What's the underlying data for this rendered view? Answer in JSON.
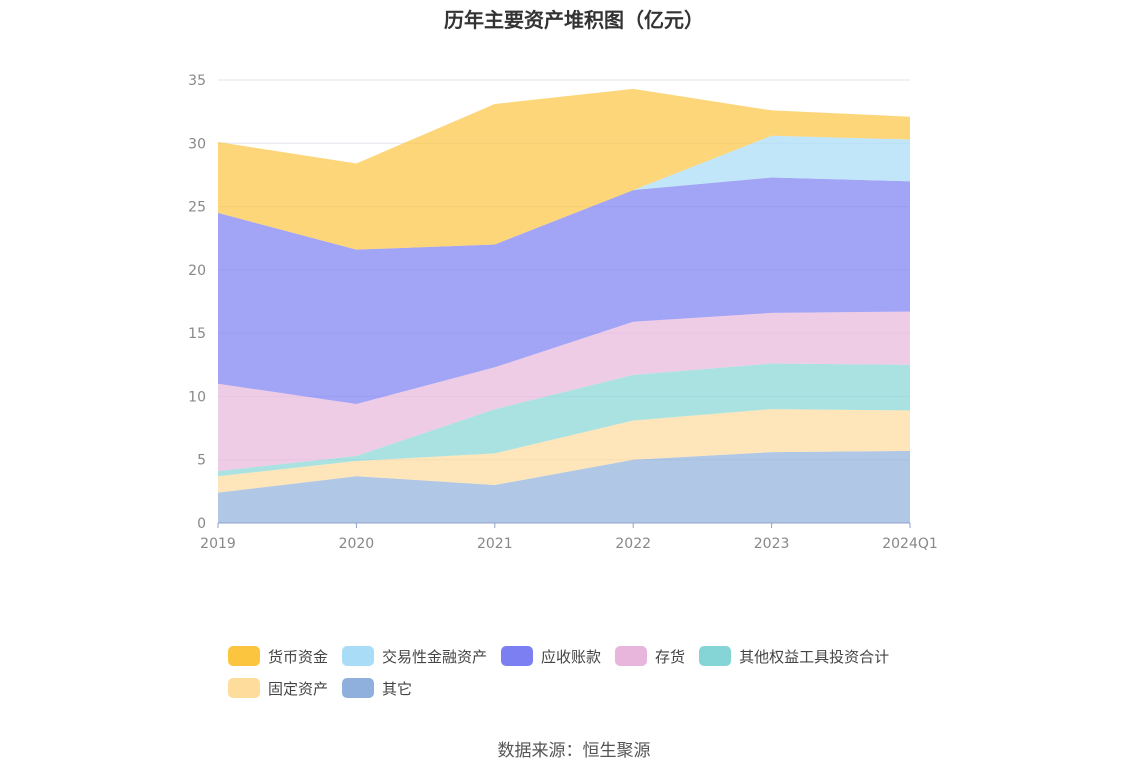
{
  "source_text": "数据来源：恒生聚源",
  "colors": {
    "grid": "#e3e6ee",
    "axis": "#8fa0c8",
    "tick_text": "#888888"
  },
  "chart_data": {
    "type": "area",
    "stacked": true,
    "title": "历年主要资产堆积图（亿元）",
    "xlabel": "",
    "ylabel": "",
    "categories": [
      "2019",
      "2020",
      "2021",
      "2022",
      "2023",
      "2024Q1"
    ],
    "ylim": [
      0,
      35
    ],
    "yticks": [
      0,
      5,
      10,
      15,
      20,
      25,
      30,
      35
    ],
    "grid": true,
    "legend_position": "bottom",
    "series": [
      {
        "name": "货币资金",
        "color": "#fbc53f",
        "values": [
          5.6,
          6.8,
          11.1,
          8.0,
          2.0,
          1.8
        ]
      },
      {
        "name": "交易性金融资产",
        "color": "#a8dcf7",
        "values": [
          0.0,
          0.0,
          0.0,
          0.0,
          3.3,
          3.3
        ]
      },
      {
        "name": "应收账款",
        "color": "#7b7ff2",
        "values": [
          13.5,
          12.2,
          9.7,
          10.4,
          10.7,
          10.3
        ]
      },
      {
        "name": "存货",
        "color": "#e8b6dc",
        "values": [
          6.9,
          4.1,
          3.3,
          4.2,
          4.0,
          4.2
        ]
      },
      {
        "name": "其他权益工具投资合计",
        "color": "#86d5d6",
        "values": [
          0.4,
          0.4,
          3.5,
          3.6,
          3.6,
          3.6
        ]
      },
      {
        "name": "固定资产",
        "color": "#fddc9c",
        "values": [
          1.3,
          1.2,
          2.5,
          3.1,
          3.4,
          3.2
        ]
      },
      {
        "name": "其它",
        "color": "#8fafdc",
        "values": [
          2.4,
          3.7,
          3.0,
          5.0,
          5.6,
          5.7
        ]
      }
    ]
  }
}
